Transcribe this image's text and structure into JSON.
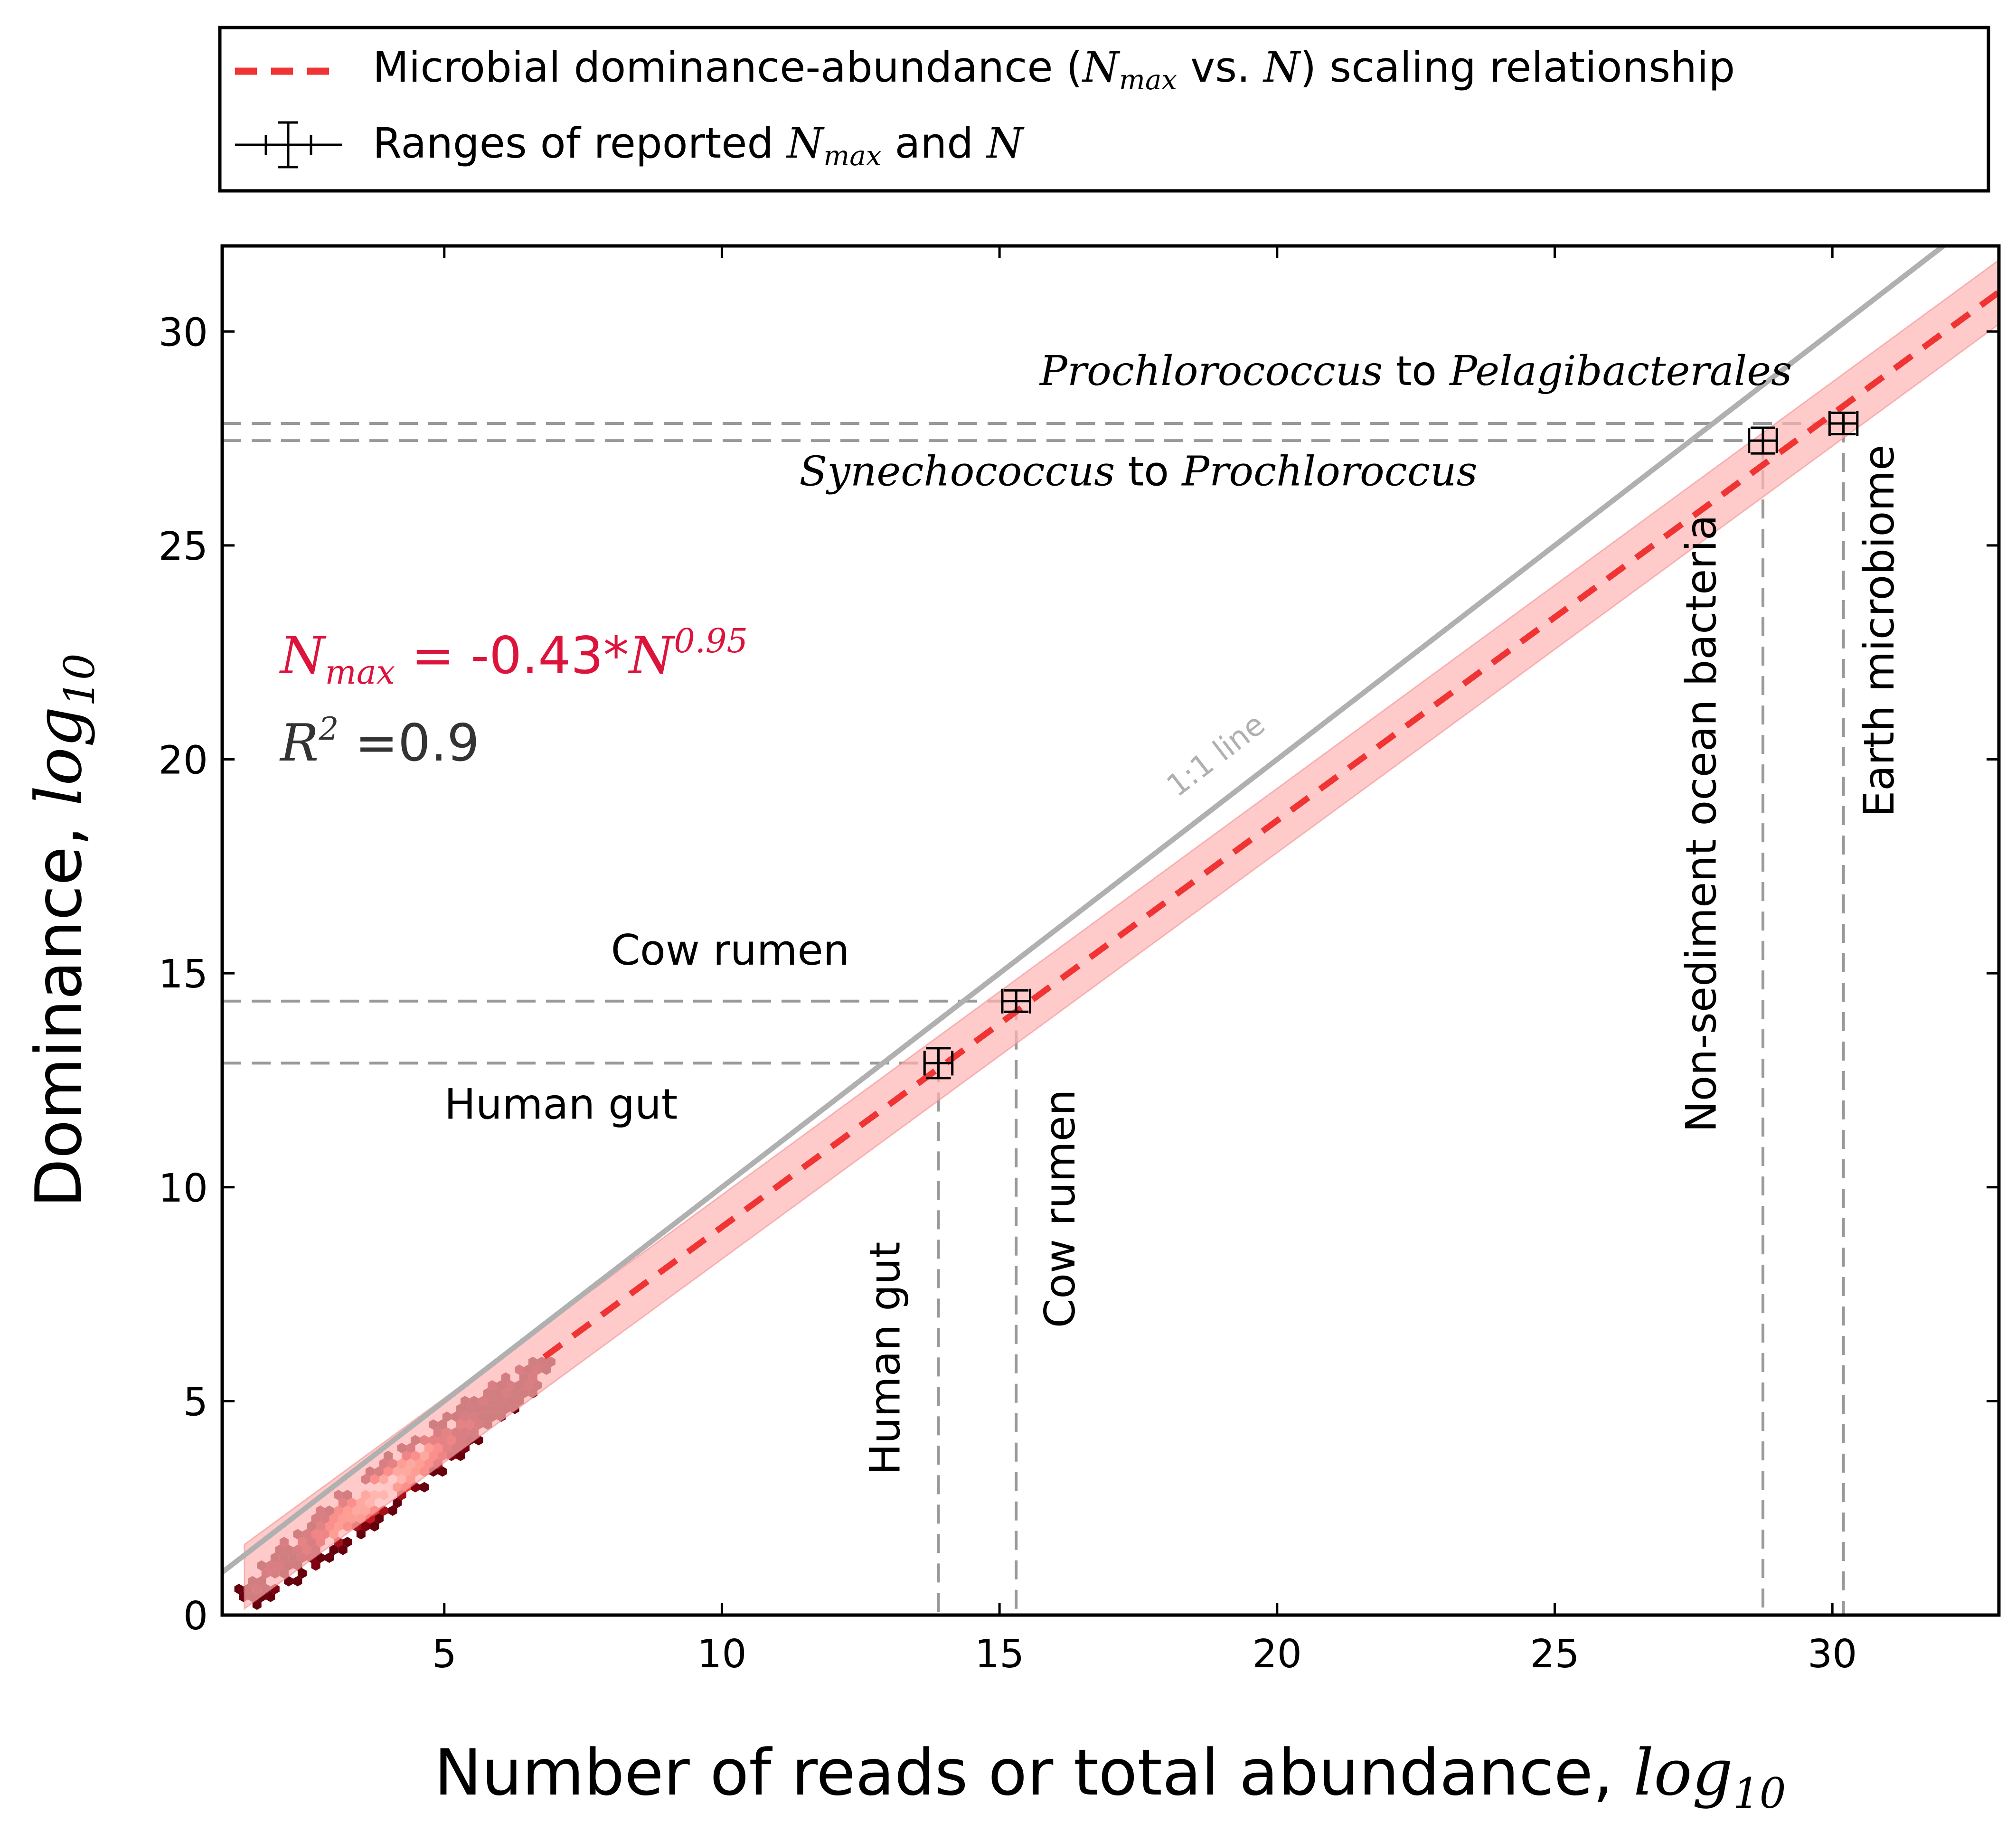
{
  "legend": {
    "entries": [
      {
        "pre": "Microbial dominance-abundance (",
        "m1": "N",
        "m1sub": "max",
        "mid": " vs. ",
        "m2": "N",
        "post": ") scaling relationship"
      },
      {
        "pre": "Ranges of reported ",
        "m1": "N",
        "m1sub": "max",
        "mid": " and ",
        "m2": "N",
        "post": ""
      }
    ],
    "colors": {
      "fit": "#f03434",
      "ranges": "#000000"
    }
  },
  "chart_data": {
    "type": "scatter",
    "xlabel": {
      "text": "Number of reads or total abundance, ",
      "math": "log",
      "sub": "10"
    },
    "ylabel": {
      "text": "Dominance, ",
      "math": "log",
      "sub": "10"
    },
    "xlim": [
      1,
      33
    ],
    "ylim": [
      0,
      32
    ],
    "x_ticks": [
      5,
      10,
      15,
      20,
      25,
      30
    ],
    "y_ticks": [
      0,
      5,
      10,
      15,
      20,
      25,
      30
    ],
    "grid": false,
    "legend_position": "top, outside plot",
    "equation": {
      "lhs": "N",
      "lhs_sub": "max",
      "mid": " = -0.43*",
      "rhs": "N",
      "rhs_sup": "0.95",
      "color": "#dc143c"
    },
    "r2": {
      "base": "R",
      "sup": "2",
      "rest": " =0.9"
    },
    "fit_line": {
      "intercept": -0.43,
      "slope": 0.95,
      "x_range": [
        1.4,
        33
      ],
      "band": 0.75,
      "color": "#f03434"
    },
    "one_to_one": {
      "label": "1:1 line",
      "color": "#b0b0b0"
    },
    "points": [
      {
        "name": "Human gut",
        "x": 13.9,
        "y": 12.9,
        "xerr": 0.25,
        "yerr": 0.35
      },
      {
        "name": "Cow rumen",
        "x": 15.3,
        "y": 14.35,
        "xerr": 0.25,
        "yerr": 0.25
      },
      {
        "name": "Non-sediment ocean bacteria",
        "x": 28.75,
        "y": 27.45,
        "xerr": 0.25,
        "yerr": 0.3
      },
      {
        "name": "Earth microbiome",
        "x": 30.2,
        "y": 27.85,
        "xerr": 0.25,
        "yerr": 0.25
      }
    ],
    "annotations": {
      "horizontal": [
        {
          "x": 8,
          "y": 15.2,
          "text": "Cow rumen"
        },
        {
          "x": 5,
          "y": 11.6,
          "text": "Human gut"
        }
      ],
      "vertical": [
        {
          "x": 13.2,
          "y": 6,
          "text": "Human gut"
        },
        {
          "x": 16.35,
          "y": 9.5,
          "text": "Cow rumen"
        },
        {
          "x": 27.9,
          "y": 18.5,
          "text": "Non-sediment ocean bacteria"
        },
        {
          "x": 31.1,
          "y": 23,
          "text": "Earth microbiome"
        }
      ],
      "ocean": [
        {
          "x": 22.5,
          "y": 28.75,
          "a": "Prochlorococcus",
          "b": " to ",
          "c": "Pelagibacterales"
        },
        {
          "x": 17.5,
          "y": 26.4,
          "a": "Synechococcus",
          "b": " to ",
          "c": "Prochloroccus"
        }
      ]
    }
  }
}
